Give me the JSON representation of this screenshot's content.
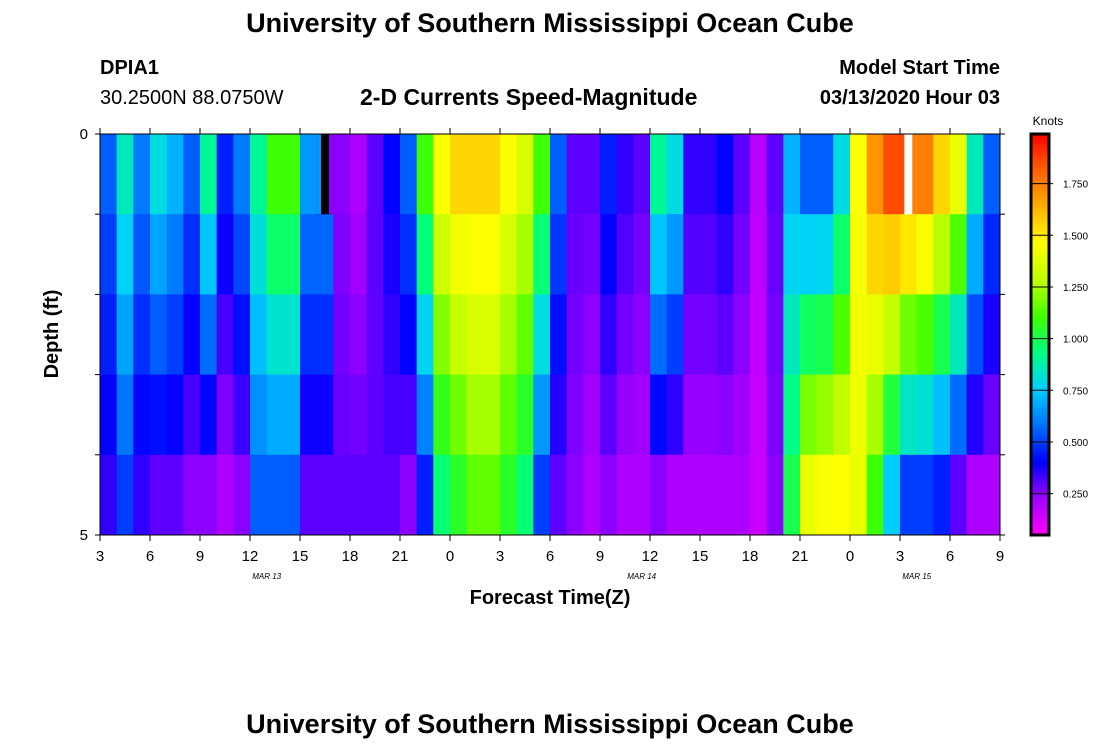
{
  "header": {
    "title": "University of Southern Mississippi Ocean Cube",
    "station_id": "DPIA1",
    "station_coords": "30.2500N 88.0750W",
    "chart_title": "2-D Currents Speed-Magnitude",
    "model_start_label": "Model Start Time",
    "model_start_value": "03/13/2020 Hour 03"
  },
  "footer": {
    "title": "University of Southern Mississippi Ocean Cube"
  },
  "colors": {
    "colormap": [
      "#ff00ff",
      "#a000ff",
      "#0000ff",
      "#0070ff",
      "#00d0ff",
      "#00ff80",
      "#40ff00",
      "#c0ff00",
      "#ffff00",
      "#ffb000",
      "#ff6000",
      "#ff0000"
    ],
    "missing_value": "#ffffff",
    "low_value_mark": "#000000"
  },
  "chart_data": {
    "type": "heatmap",
    "title": "2-D Currents Speed-Magnitude",
    "xlabel": "Forecast Time(Z)",
    "ylabel": "Depth (ft)",
    "x_unit": "hours since 03/13/2020 03Z",
    "x_range": [
      0,
      54
    ],
    "x_ticks": [
      0,
      3,
      6,
      9,
      12,
      15,
      18,
      21,
      24,
      27,
      30,
      33,
      36,
      39,
      42,
      45,
      48,
      51,
      54
    ],
    "x_tick_labels": [
      "3",
      "6",
      "9",
      "12",
      "15",
      "18",
      "21",
      "0",
      "3",
      "6",
      "9",
      "12",
      "15",
      "18",
      "21",
      "0",
      "3",
      "6",
      "9"
    ],
    "date_labels": [
      {
        "x": 10,
        "text": "MAR 13"
      },
      {
        "x": 32.5,
        "text": "MAR 14"
      },
      {
        "x": 49,
        "text": "MAR 15"
      }
    ],
    "y_range": [
      0,
      5
    ],
    "y_ticks": [
      0,
      1,
      2,
      3,
      4,
      5
    ],
    "y_tick_labels": [
      "0",
      "",
      "",
      "",
      "",
      "5"
    ],
    "depth_layers": 5,
    "hours": [
      0,
      1,
      2,
      3,
      4,
      5,
      6,
      7,
      8,
      9,
      10,
      11,
      12,
      13,
      14,
      15,
      16,
      17,
      18,
      19,
      20,
      21,
      22,
      23,
      24,
      25,
      26,
      27,
      28,
      29,
      30,
      31,
      32,
      33,
      34,
      35,
      36,
      37,
      38,
      39,
      40,
      41,
      42,
      43,
      44,
      45,
      46,
      47,
      48,
      49,
      50,
      51,
      52,
      53
    ],
    "surface_knots": [
      0.55,
      0.85,
      0.6,
      0.8,
      0.7,
      0.55,
      0.9,
      0.45,
      0.6,
      0.9,
      1.1,
      1.1,
      0.65,
      null,
      0.25,
      0.2,
      0.3,
      0.4,
      0.55,
      1.1,
      1.45,
      1.55,
      1.55,
      1.55,
      1.45,
      1.35,
      1.1,
      0.55,
      0.3,
      0.3,
      0.45,
      0.35,
      0.3,
      0.9,
      0.8,
      0.35,
      0.35,
      0.4,
      0.3,
      0.18,
      0.3,
      0.7,
      0.55,
      0.55,
      0.8,
      1.45,
      1.7,
      1.85,
      null,
      1.75,
      1.55,
      1.4,
      0.85,
      0.55
    ],
    "bottom_knots": [
      0.35,
      0.5,
      0.35,
      0.3,
      0.3,
      0.25,
      0.25,
      0.2,
      0.25,
      0.55,
      0.55,
      0.55,
      0.3,
      0.3,
      0.3,
      0.3,
      0.3,
      0.3,
      0.25,
      0.45,
      0.95,
      1.05,
      1.15,
      1.15,
      1.05,
      0.95,
      0.5,
      0.3,
      0.25,
      0.2,
      0.25,
      0.2,
      0.2,
      0.25,
      0.2,
      0.2,
      0.2,
      0.2,
      0.2,
      0.15,
      0.25,
      1.0,
      1.4,
      1.45,
      1.45,
      1.4,
      1.1,
      0.75,
      0.5,
      0.5,
      0.45,
      0.3,
      0.2,
      0.2
    ],
    "color_scale": {
      "label": "Knots",
      "min": 0.05,
      "max": 1.99,
      "ticks": [
        0.25,
        0.5,
        0.75,
        1.0,
        1.25,
        1.5,
        1.75
      ],
      "tick_labels": [
        "0.250",
        "0.500",
        "0.750",
        "1.000",
        "1.250",
        "1.500",
        "1.750"
      ]
    }
  }
}
